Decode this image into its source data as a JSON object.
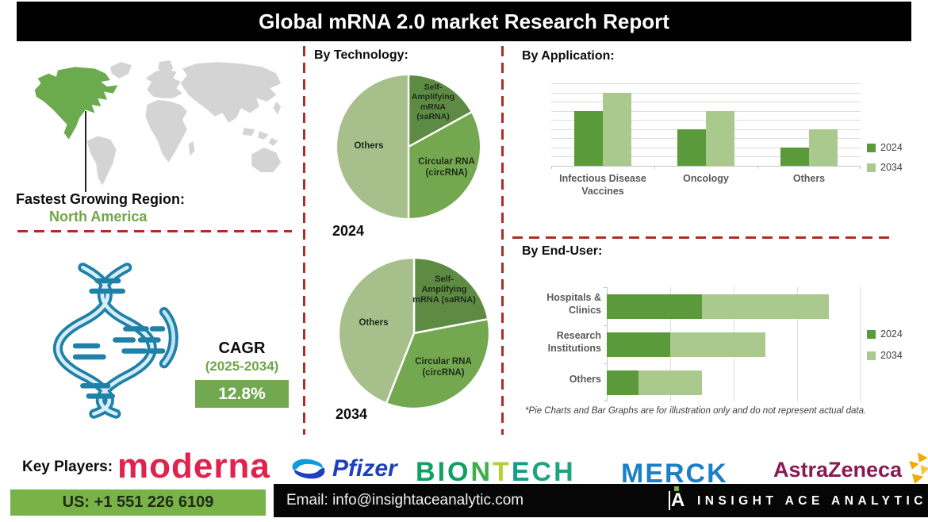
{
  "header": {
    "title": "Global mRNA 2.0 market Research Report"
  },
  "region_section": {
    "label": "Fastest Growing Region:",
    "region": "North America",
    "region_color": "#6fa648",
    "map_highlight_color": "#6caa4e",
    "map_base_color": "#d4d4d4"
  },
  "cagr_section": {
    "label": "CAGR",
    "period": "(2025-2034)",
    "period_color": "#6fa648",
    "value": "12.8%",
    "box_color": "#72a84f"
  },
  "sections": {
    "technology_heading": "By Technology:",
    "application_heading": "By Application:",
    "end_user_heading": "By End-User:"
  },
  "footnote": "*Pie Charts and Bar Graphs are for illustration only and do not represent actual data.",
  "chart_data": [
    {
      "id": "technology-2024",
      "type": "pie",
      "title": "2024",
      "labels": [
        "Self-Amplifying mRNA (saRNA)",
        "Circular RNA (circRNA)",
        "Others"
      ],
      "values": [
        17,
        33,
        50
      ],
      "colors": [
        "#5e8b43",
        "#73a850",
        "#a7bf8b"
      ],
      "start_angle_deg": 0,
      "direction": "clockwise",
      "slice_border_color": "#ffffff"
    },
    {
      "id": "technology-2034",
      "type": "pie",
      "title": "2034",
      "labels": [
        "Self-Amplifying mRNA (saRNA)",
        "Circular RNA (circRNA)",
        "Others"
      ],
      "values": [
        22,
        34,
        44
      ],
      "colors": [
        "#5e8b43",
        "#73a850",
        "#a7bf8b"
      ],
      "start_angle_deg": 0,
      "direction": "clockwise",
      "slice_border_color": "#ffffff"
    },
    {
      "id": "application",
      "type": "bar",
      "title": "By Application:",
      "categories": [
        "Infectious Disease Vaccines",
        "Oncology",
        "Others"
      ],
      "series": [
        {
          "name": "2024",
          "values": [
            6,
            4,
            2
          ],
          "color": "#5b9a3b"
        },
        {
          "name": "2034",
          "values": [
            8,
            6,
            4
          ],
          "color": "#a9c98d"
        }
      ],
      "ylim": [
        0,
        9
      ],
      "gridline_step": 1,
      "grid": true,
      "legend_position": "right",
      "value_axis_labels_visible": false
    },
    {
      "id": "end-user",
      "type": "bar",
      "orientation": "horizontal",
      "stacked": true,
      "title": "By End-User:",
      "categories": [
        "Hospitals & Clinics",
        "Research Institutions",
        "Others"
      ],
      "series": [
        {
          "name": "2024",
          "values": [
            3,
            2,
            1
          ],
          "color": "#5b9a3b"
        },
        {
          "name": "2034",
          "values": [
            4,
            3,
            2
          ],
          "color": "#a9c98d"
        }
      ],
      "xlim": [
        0,
        8
      ],
      "gridline_step": 2,
      "grid": true,
      "legend_position": "right",
      "value_axis_labels_visible": false
    }
  ],
  "key_players": {
    "label": "Key Players:",
    "players": [
      {
        "name": "moderna",
        "color": "#e0234e"
      },
      {
        "name": "Pfizer",
        "color": "#1f3fbe",
        "icon": "pfizer-swirl",
        "icon_colors": [
          "#0b9de0",
          "#1f3fbe"
        ]
      },
      {
        "name": "BIONTECH",
        "letter_colors": [
          "#129f62",
          "#129f62",
          "#129f62",
          "#3fae49",
          "#b6cf33",
          "#0f9f8d",
          "#1ba57a",
          "#1ba57a"
        ]
      },
      {
        "name": "MERCK",
        "color": "#1b80c6"
      },
      {
        "name": "AstraZeneca",
        "color": "#8a1a52",
        "icon": "astrazeneca-mosaic",
        "icon_colors": [
          "#f2a900",
          "#f7c440"
        ]
      }
    ]
  },
  "footer": {
    "phone": "US: +1 551 226 6109",
    "phone_box_color": "#79b347",
    "email": "Email: info@insightaceanalytic.com",
    "brand": "INSIGHT ACE ANALYTIC",
    "brand_dot_color": "#79b347"
  }
}
